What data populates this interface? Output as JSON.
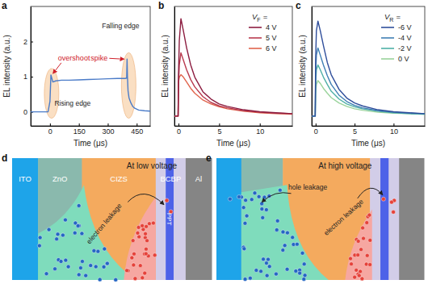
{
  "chart_data": [
    {
      "panel": "a",
      "type": "line",
      "x_label": "Time (μs)",
      "y_label": "EL intensity (a.u.)",
      "x": [
        -100,
        -10,
        0,
        5,
        15,
        30,
        60,
        100,
        150,
        200,
        250,
        300,
        350,
        390,
        398,
        400,
        402,
        405,
        410,
        420,
        430,
        440,
        460,
        490,
        520
      ],
      "values": [
        0,
        0,
        0.3,
        1.05,
        0.85,
        0.88,
        0.9,
        0.9,
        0.91,
        0.92,
        0.93,
        0.94,
        0.95,
        0.95,
        0.96,
        1.5,
        1.0,
        0.6,
        0.4,
        0.25,
        0.15,
        0.1,
        0.05,
        0.03,
        0.02
      ],
      "color": "#4a7bc8",
      "xlim": [
        -100,
        520
      ],
      "xticks": [
        0,
        150,
        300,
        450
      ],
      "ylim": [
        -0.4,
        3
      ],
      "yticks": [
        0,
        1,
        2
      ],
      "annotations": [
        {
          "text": "overshoot",
          "color": "#d0202a"
        },
        {
          "text": "spike",
          "color": "#d0202a"
        },
        {
          "text": "Rising edge",
          "color": "#222222"
        },
        {
          "text": "Falling edge",
          "color": "#222222"
        }
      ]
    },
    {
      "panel": "b",
      "type": "line",
      "x_label": "Time (μs)",
      "y_label": "EL intensity (a.u.)",
      "x": [
        -0.5,
        -0.05,
        0,
        0.1,
        0.3,
        0.6,
        1,
        1.5,
        2,
        3,
        4,
        5,
        6,
        8,
        10,
        12,
        14
      ],
      "series": [
        {
          "name": "4 V",
          "color": "#8c1d40",
          "values": [
            0.05,
            0.05,
            0.9,
            1.6,
            2.05,
            1.8,
            1.45,
            1.1,
            0.85,
            0.55,
            0.4,
            0.3,
            0.25,
            0.18,
            0.14,
            0.12,
            0.1
          ]
        },
        {
          "name": "5 V",
          "color": "#b93a4e",
          "values": [
            0.05,
            0.05,
            0.7,
            1.1,
            1.35,
            1.2,
            1.0,
            0.8,
            0.65,
            0.45,
            0.33,
            0.26,
            0.22,
            0.16,
            0.13,
            0.11,
            0.1
          ]
        },
        {
          "name": "6 V",
          "color": "#e0644c",
          "values": [
            0.05,
            0.05,
            0.75,
            0.85,
            0.9,
            0.85,
            0.75,
            0.62,
            0.52,
            0.38,
            0.3,
            0.24,
            0.2,
            0.15,
            0.12,
            0.1,
            0.09
          ]
        }
      ],
      "legend_title": {
        "text": "V",
        "subscript": "F",
        "suffix": "="
      },
      "legend": "upper right",
      "xlim": [
        -0.5,
        14
      ],
      "xticks": [
        0,
        5,
        10
      ],
      "ylim": [
        -0.15,
        2.3
      ],
      "tick_labels": "x"
    },
    {
      "panel": "c",
      "type": "line",
      "x_label": "Time (μs)",
      "y_label": "EL intensity (a.u.)",
      "x": [
        -0.5,
        -0.05,
        0,
        0.1,
        0.3,
        0.6,
        1,
        1.5,
        2,
        3,
        4,
        5,
        6,
        8,
        10,
        12,
        14
      ],
      "series": [
        {
          "name": "-6 V",
          "color": "#2f4e9b",
          "values": [
            0.05,
            0.05,
            1.2,
            1.8,
            2.0,
            1.8,
            1.5,
            1.15,
            0.9,
            0.6,
            0.42,
            0.32,
            0.26,
            0.18,
            0.14,
            0.12,
            0.1
          ]
        },
        {
          "name": "-4 V",
          "color": "#3f7fb4",
          "values": [
            0.05,
            0.05,
            0.9,
            1.3,
            1.45,
            1.3,
            1.1,
            0.88,
            0.7,
            0.48,
            0.35,
            0.27,
            0.22,
            0.16,
            0.13,
            0.11,
            0.1
          ]
        },
        {
          "name": "-2 V",
          "color": "#4fb0a6",
          "values": [
            0.05,
            0.05,
            0.7,
            1.0,
            1.1,
            1.0,
            0.85,
            0.7,
            0.56,
            0.4,
            0.3,
            0.24,
            0.2,
            0.15,
            0.12,
            0.1,
            0.09
          ]
        },
        {
          "name": "0 V",
          "color": "#9ad39b",
          "values": [
            0.05,
            0.05,
            0.5,
            0.7,
            0.78,
            0.72,
            0.62,
            0.52,
            0.43,
            0.32,
            0.25,
            0.2,
            0.17,
            0.13,
            0.11,
            0.1,
            0.09
          ]
        }
      ],
      "legend_title": {
        "text": "V",
        "subscript": "R",
        "suffix": "="
      },
      "legend": "upper right",
      "xlim": [
        -0.5,
        14
      ],
      "xticks": [
        0,
        5,
        10
      ],
      "ylim": [
        -0.15,
        2.3
      ],
      "tick_labels": "x"
    }
  ],
  "diagrams": [
    {
      "panel": "d",
      "title": "At low voltage",
      "layers": [
        "ITO",
        "ZnO",
        "CIZS",
        "BCBP",
        "Al"
      ],
      "interlayer": "PPT",
      "arrows": [
        "electron leakage"
      ]
    },
    {
      "panel": "e",
      "title": "At high voltage",
      "arrows": [
        "hole leakage",
        "electron leakage"
      ]
    }
  ]
}
